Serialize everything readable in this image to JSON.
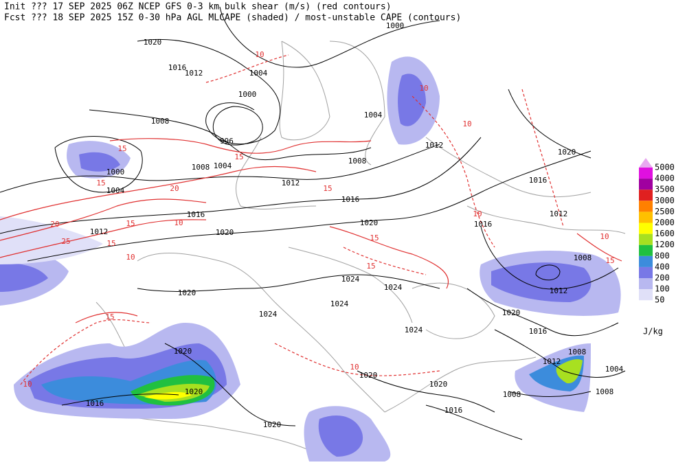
{
  "header": {
    "line1": "Init  ??? 17 SEP 2025 06Z  NCEP GFS 0-3 km bulk shear (m/s) (red contours)",
    "line2": "Fcst ??? 18 SEP 2025 15Z  0-30 hPa AGL MLCAPE (shaded) / most-unstable CAPE (contours)"
  },
  "legend": {
    "unit": "J/kg",
    "levels": [
      {
        "value": 5000,
        "color": "#e8a8f0"
      },
      {
        "value": 4000,
        "color": "#e010e0"
      },
      {
        "value": 3500,
        "color": "#a000a0"
      },
      {
        "value": 3000,
        "color": "#e02020"
      },
      {
        "value": 2500,
        "color": "#ff8000"
      },
      {
        "value": 2000,
        "color": "#ffc000"
      },
      {
        "value": 1600,
        "color": "#ffff00"
      },
      {
        "value": 1200,
        "color": "#a8e020"
      },
      {
        "value": 800,
        "color": "#20c040"
      },
      {
        "value": 400,
        "color": "#3c8cdc"
      },
      {
        "value": 200,
        "color": "#7878e6"
      },
      {
        "value": 100,
        "color": "#b8b8f0"
      },
      {
        "value": 50,
        "color": "#e0e0f8"
      }
    ]
  },
  "isobar_labels": [
    1000,
    1020,
    1016,
    1012,
    1004,
    1000,
    1008,
    996,
    1004,
    1000,
    1004,
    1008,
    1004,
    1012,
    1008,
    1012,
    1020,
    1016,
    1016,
    1016,
    1020,
    1012,
    1020,
    1012,
    1016,
    1008,
    1024,
    1024,
    1012,
    1020,
    1024,
    1024,
    1020,
    1024,
    1016,
    1020,
    1008,
    1012,
    1004,
    1020,
    1020,
    1020,
    1016,
    1008,
    1008,
    1016,
    1020
  ],
  "shear_labels": [
    10,
    10,
    15,
    15,
    20,
    15,
    20,
    25,
    15,
    15,
    10,
    10,
    15,
    10,
    10,
    15,
    15,
    10,
    15,
    10,
    10,
    15
  ]
}
